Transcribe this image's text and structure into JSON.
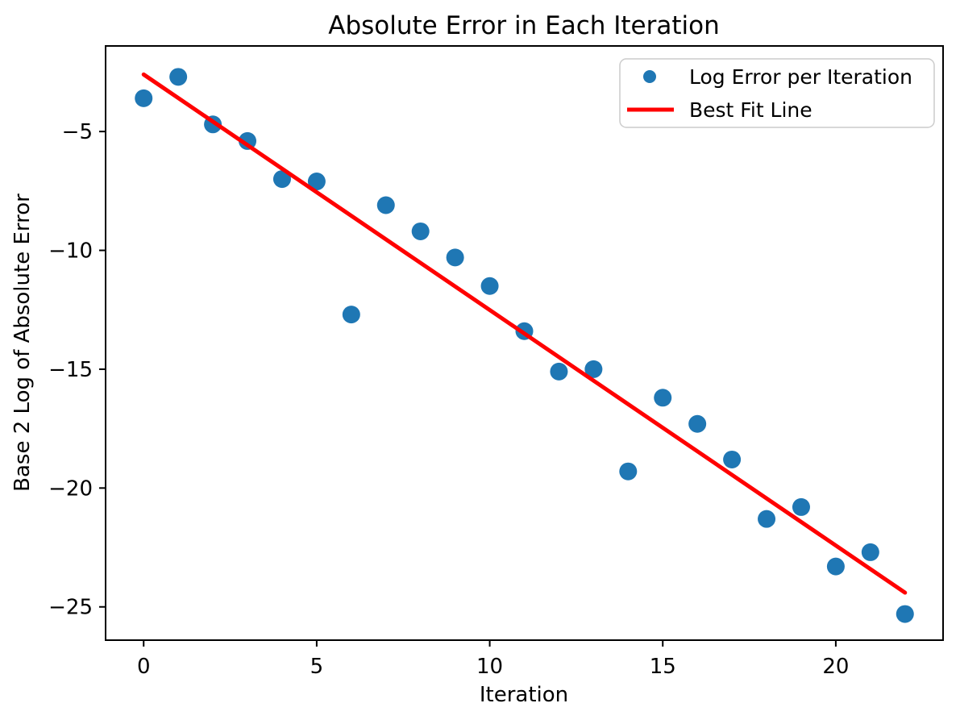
{
  "chart_data": {
    "type": "scatter",
    "title": "Absolute Error in Each Iteration",
    "xlabel": "Iteration",
    "ylabel": "Base 2 Log of Absolute Error",
    "xlim": [
      -1.1,
      23.1
    ],
    "ylim": [
      -26.4,
      -1.4
    ],
    "xticks": [
      0,
      5,
      10,
      15,
      20
    ],
    "yticks": [
      -5,
      -10,
      -15,
      -20,
      -25
    ],
    "grid": false,
    "legend_position": "upper right",
    "series": [
      {
        "name": "Log Error per Iteration",
        "type": "scatter",
        "color": "#1f77b4",
        "x": [
          0,
          1,
          2,
          3,
          4,
          5,
          6,
          7,
          8,
          9,
          10,
          11,
          12,
          13,
          14,
          15,
          16,
          17,
          18,
          19,
          20,
          21,
          22
        ],
        "y": [
          -3.6,
          -2.7,
          -4.7,
          -5.4,
          -7.0,
          -7.1,
          -12.7,
          -8.1,
          -9.2,
          -10.3,
          -11.5,
          -13.4,
          -15.1,
          -15.0,
          -19.3,
          -16.2,
          -17.3,
          -18.8,
          -21.3,
          -20.8,
          -23.3,
          -22.7,
          -25.3
        ]
      },
      {
        "name": "Best Fit Line",
        "type": "line",
        "color": "#ff0000",
        "x": [
          0,
          22
        ],
        "y": [
          -2.6,
          -24.4
        ]
      }
    ]
  }
}
